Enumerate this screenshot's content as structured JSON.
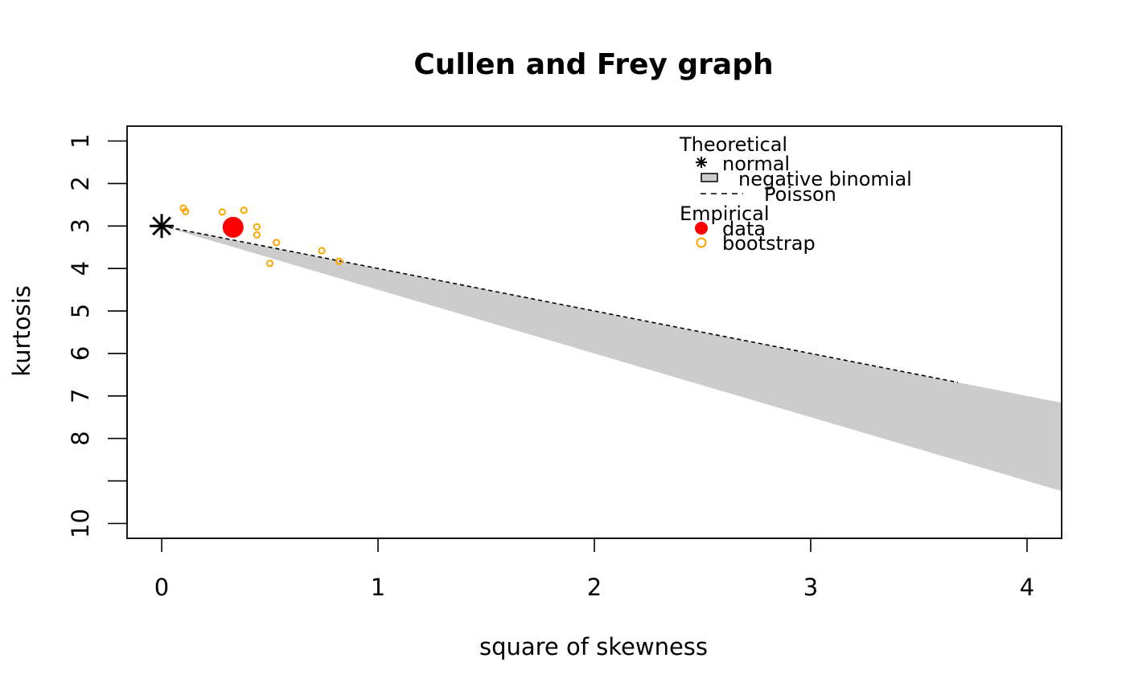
{
  "chart_data": {
    "type": "scatter",
    "title": "Cullen and Frey graph",
    "xlabel": "square of skewness",
    "ylabel": "kurtosis",
    "xlim": [
      -0.16,
      4.16
    ],
    "ylim": [
      10.35,
      0.65
    ],
    "y_reversed": true,
    "x_ticks": [
      0,
      1,
      2,
      3,
      4
    ],
    "x_tick_labels": [
      "0",
      "1",
      "2",
      "3",
      "4"
    ],
    "y_ticks": [
      1,
      2,
      3,
      4,
      5,
      6,
      7,
      8,
      9,
      10
    ],
    "y_tick_labels": [
      "1",
      "2",
      "3",
      "4",
      "5",
      "6",
      "7",
      "8",
      "",
      "10"
    ],
    "grid": false,
    "legend": {
      "position": "top-right",
      "theoretical_title": "Theoretical",
      "empirical_title": "Empirical",
      "normal_label": "normal",
      "negbin_label": "negative binomial",
      "poisson_label": "Poisson",
      "data_label": "data",
      "bootstrap_label": "bootstrap"
    },
    "normal_point": {
      "x": 0,
      "y": 3
    },
    "poisson_line": {
      "x": [
        0,
        3.68
      ],
      "y": [
        3,
        6.68
      ]
    },
    "negative_binomial_region": {
      "x": [
        0,
        4.16
      ],
      "upper_y": [
        3,
        7.16
      ],
      "lower_y": [
        3,
        9.24
      ]
    },
    "observed": {
      "x": 0.33,
      "y": 3.03
    },
    "bootstrap": [
      {
        "x": 0.1,
        "y": 2.58
      },
      {
        "x": 0.11,
        "y": 2.66
      },
      {
        "x": 0.28,
        "y": 2.67
      },
      {
        "x": 0.38,
        "y": 2.63
      },
      {
        "x": 0.44,
        "y": 3.02
      },
      {
        "x": 0.44,
        "y": 3.21
      },
      {
        "x": 0.53,
        "y": 3.39
      },
      {
        "x": 0.5,
        "y": 3.88
      },
      {
        "x": 0.74,
        "y": 3.58
      },
      {
        "x": 0.82,
        "y": 3.83
      }
    ],
    "colors": {
      "data": "#ff0000",
      "bootstrap": "#ffa500",
      "negative_binomial_fill": "#cccccc",
      "axis": "#000000"
    }
  }
}
